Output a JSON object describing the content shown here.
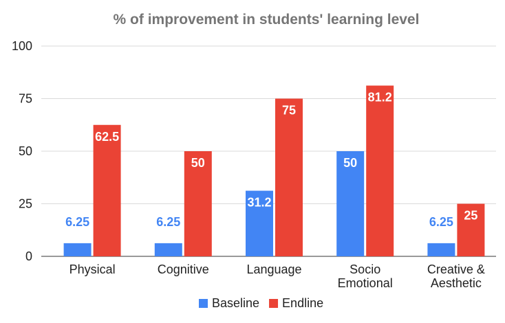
{
  "chart_data": {
    "type": "bar",
    "title": "% of improvement in students' learning level",
    "xlabel": "",
    "ylabel": "",
    "ylim": [
      0,
      100
    ],
    "yticks": [
      0,
      25,
      50,
      75,
      100
    ],
    "grid": true,
    "legend_position": "bottom",
    "categories": [
      [
        "Physical"
      ],
      [
        "Cognitive"
      ],
      [
        "Language"
      ],
      [
        "Socio",
        "Emotional"
      ],
      [
        "Creative &",
        "Aesthetic"
      ]
    ],
    "series": [
      {
        "name": "Baseline",
        "color": "#4285f4",
        "values": [
          6.25,
          6.25,
          31.2,
          50,
          6.25
        ],
        "labels": [
          "6.25",
          "6.25",
          "31.2",
          "50",
          "6.25"
        ]
      },
      {
        "name": "Endline",
        "color": "#ea4335",
        "values": [
          62.5,
          50,
          75,
          81.2,
          25
        ],
        "labels": [
          "62.5",
          "50",
          "75",
          "81.2",
          "25"
        ]
      }
    ]
  }
}
